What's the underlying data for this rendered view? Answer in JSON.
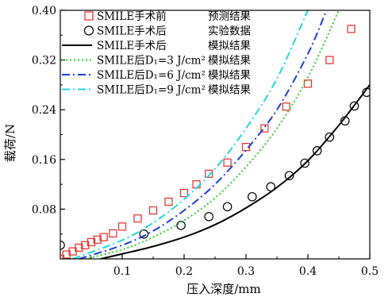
{
  "chart_data": {
    "type": "line",
    "xlabel": "压入深度/mm",
    "ylabel": "载荷/N",
    "xlim": [
      0,
      0.5
    ],
    "ylim": [
      0,
      0.4
    ],
    "x_ticks": [
      "0.1",
      "0.2",
      "0.3",
      "0.4",
      "0.5"
    ],
    "y_ticks": [
      "0.08",
      "0.16",
      "0.24",
      "0.32",
      "0.40"
    ],
    "grid": false,
    "legend_position": "top-left",
    "series": [
      {
        "name": "SMILE手术前",
        "note": "预测结果",
        "style": "square-marker",
        "color": "#e53935",
        "x": [
          0.0,
          0.01,
          0.02,
          0.03,
          0.04,
          0.05,
          0.06,
          0.07,
          0.085,
          0.1,
          0.125,
          0.15,
          0.175,
          0.2,
          0.22,
          0.24,
          0.27,
          0.3,
          0.33,
          0.365,
          0.4,
          0.435,
          0.47
        ],
        "y": [
          0.0,
          0.007,
          0.012,
          0.018,
          0.022,
          0.027,
          0.031,
          0.035,
          0.041,
          0.052,
          0.065,
          0.078,
          0.092,
          0.106,
          0.12,
          0.137,
          0.155,
          0.18,
          0.21,
          0.245,
          0.282,
          0.32,
          0.37
        ]
      },
      {
        "name": "SMILE手术后",
        "note": "实验数据",
        "style": "circle-marker",
        "color": "#000000",
        "x": [
          0.0,
          0.135,
          0.195,
          0.24,
          0.27,
          0.31,
          0.34,
          0.37,
          0.395,
          0.415,
          0.435,
          0.46,
          0.475,
          0.495
        ],
        "y": [
          0.022,
          0.04,
          0.054,
          0.068,
          0.084,
          0.1,
          0.116,
          0.134,
          0.154,
          0.174,
          0.196,
          0.222,
          0.246,
          0.268
        ]
      },
      {
        "name": "SMILE手术后",
        "note": "模拟结果",
        "style": "solid",
        "color": "#000000",
        "x": [
          0.065,
          0.1,
          0.15,
          0.2,
          0.25,
          0.3,
          0.35,
          0.4,
          0.45,
          0.5
        ],
        "y": [
          0.0,
          0.008,
          0.02,
          0.035,
          0.055,
          0.082,
          0.115,
          0.158,
          0.215,
          0.28
        ]
      },
      {
        "name": "SMILE后D₁=3 J/cm² 模拟结果",
        "style": "dotted",
        "color": "#2ecc2e",
        "x": [
          0.04,
          0.1,
          0.15,
          0.2,
          0.25,
          0.3,
          0.35,
          0.4,
          0.45
        ],
        "y": [
          0.0,
          0.015,
          0.035,
          0.062,
          0.098,
          0.148,
          0.21,
          0.292,
          0.4
        ]
      },
      {
        "name": "SMILE后D₁=6 J/cm² 模拟结果",
        "style": "dash-dot",
        "color": "#1f3cd8",
        "x": [
          0.03,
          0.1,
          0.15,
          0.2,
          0.25,
          0.3,
          0.35,
          0.4,
          0.43
        ],
        "y": [
          0.0,
          0.022,
          0.045,
          0.078,
          0.12,
          0.175,
          0.24,
          0.33,
          0.4
        ]
      },
      {
        "name": "SMILE后D₁=9 J/cm² 模拟结果",
        "style": "dash-dot",
        "color": "#1ed6e0",
        "x": [
          0.02,
          0.1,
          0.15,
          0.2,
          0.25,
          0.3,
          0.35,
          0.4
        ],
        "y": [
          0.0,
          0.03,
          0.058,
          0.096,
          0.145,
          0.21,
          0.29,
          0.4
        ]
      }
    ]
  },
  "legend": [
    {
      "label": "SMILE手术前",
      "note": "预测结果"
    },
    {
      "label": "SMILE手术后",
      "note": "实验数据"
    },
    {
      "label": "SMILE手术后",
      "note": "模拟结果"
    },
    {
      "label": "SMILE后D₁=3 J/cm²",
      "note": "模拟结果"
    },
    {
      "label": "SMILE后D₁=6 J/cm²",
      "note": "模拟结果"
    },
    {
      "label": "SMILE后D₁=9 J/cm²",
      "note": "模拟结果"
    }
  ]
}
